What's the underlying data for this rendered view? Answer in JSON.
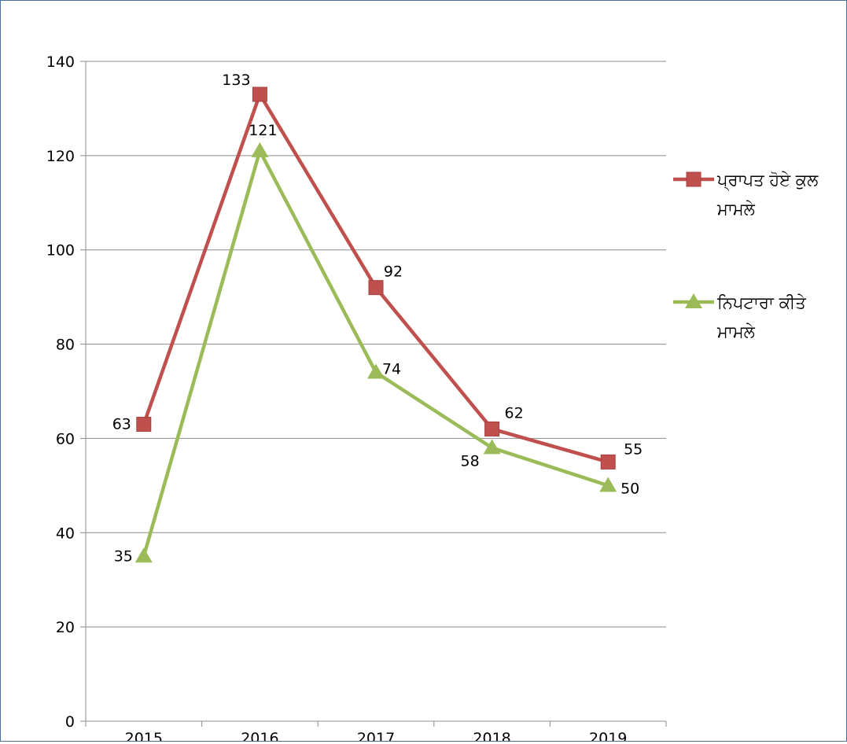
{
  "chart_data": {
    "type": "line",
    "title": "",
    "xlabel": "",
    "ylabel": "",
    "categories": [
      "2015",
      "2016",
      "2017",
      "2018",
      "2019"
    ],
    "ylim": [
      0,
      140
    ],
    "yticks": [
      0,
      20,
      40,
      60,
      80,
      100,
      120,
      140
    ],
    "grid": true,
    "legend_position": "right",
    "series": [
      {
        "name": "ਪ੍ਰਾਪਤ ਹੋਏ ਕੁਲ ਮਾਮਲੇ",
        "name_lines": [
          "ਪ੍ਰਾਪਤ ਹੋਏ ਕੁਲ",
          "ਮਾਮਲੇ"
        ],
        "values": [
          63,
          133,
          92,
          62,
          55
        ],
        "color": "#c0504d",
        "marker": "square"
      },
      {
        "name": "ਨਿਪਟਾਰਾ ਕੀਤੇ ਮਾਮਲੇ",
        "name_lines": [
          "ਨਿਪਟਾਰਾ ਕੀਤੇ",
          "ਮਾਮਲੇ"
        ],
        "values": [
          35,
          121,
          74,
          58,
          50
        ],
        "color": "#9bbb59",
        "marker": "triangle"
      }
    ]
  }
}
